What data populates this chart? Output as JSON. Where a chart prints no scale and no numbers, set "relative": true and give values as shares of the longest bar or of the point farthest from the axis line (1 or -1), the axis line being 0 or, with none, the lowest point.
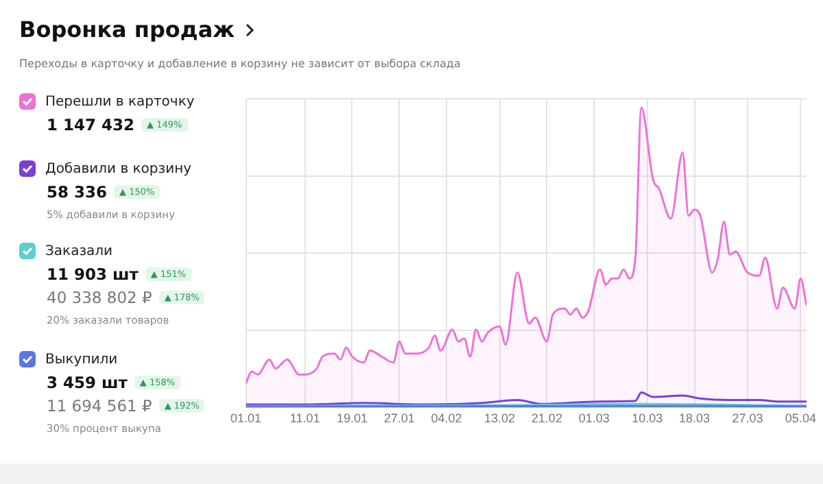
{
  "chart_data": {
    "type": "line",
    "title": "Воронка продаж",
    "subtitle": "Переходы в карточку и добавление в корзину не зависит от выбора склада",
    "relative": true,
    "grid": true,
    "legend": "left",
    "marker": "none",
    "xlim": [
      "--01-01",
      "--04-06"
    ],
    "xticks": [
      {
        "value": "--01-01",
        "label": "01.01"
      },
      {
        "value": "--01-11",
        "label": "11.01"
      },
      {
        "value": "--01-19",
        "label": "19.01"
      },
      {
        "value": "--01-27",
        "label": "27.01"
      },
      {
        "value": "--02-04",
        "label": "04.02"
      },
      {
        "value": "--02-13",
        "label": "13.02"
      },
      {
        "value": "--02-21",
        "label": "21.02"
      },
      {
        "value": "--03-01",
        "label": "01.03"
      },
      {
        "value": "--03-10",
        "label": "10.03"
      },
      {
        "value": "--03-18",
        "label": "18.03"
      },
      {
        "value": "--03-27",
        "label": "27.03"
      },
      {
        "value": "--04-05",
        "label": "05.04"
      }
    ],
    "series": [
      {
        "name": "Перешли в карточку",
        "type": "area",
        "color": "#ee72d6",
        "x": [
          "--01-01",
          "--01-02",
          "--01-03",
          "--01-05",
          "--01-06",
          "--01-08",
          "--01-10",
          "--01-11",
          "--01-13",
          "--01-14",
          "--01-16",
          "--01-17",
          "--01-18",
          "--01-19",
          "--01-21",
          "--01-22",
          "--01-24",
          "--01-26",
          "--01-27",
          "--01-28",
          "--01-30",
          "--02-01",
          "--02-02",
          "--02-03",
          "--02-05",
          "--02-06",
          "--02-07",
          "--02-08",
          "--02-09",
          "--02-10",
          "--02-11",
          "--02-13",
          "--02-14",
          "--02-16",
          "--02-18",
          "--02-19",
          "--02-21",
          "--02-22",
          "--02-24",
          "--02-25",
          "--02-26",
          "--02-27",
          "--02-28",
          "--03-02",
          "--03-03",
          "--03-04",
          "--03-05",
          "--03-06",
          "--03-07",
          "--03-08",
          "--03-09",
          "--03-11",
          "--03-12",
          "--03-14",
          "--03-16",
          "--03-17",
          "--03-18",
          "--03-19",
          "--03-21",
          "--03-22",
          "--03-23",
          "--03-24",
          "--03-25",
          "--03-27",
          "--03-29",
          "--03-30",
          "--04-01",
          "--04-02",
          "--04-04",
          "--04-05",
          "--04-06"
        ],
        "values": [
          0.08,
          0.12,
          0.11,
          0.16,
          0.13,
          0.16,
          0.11,
          0.11,
          0.13,
          0.17,
          0.18,
          0.16,
          0.2,
          0.17,
          0.15,
          0.19,
          0.17,
          0.15,
          0.22,
          0.18,
          0.18,
          0.2,
          0.24,
          0.19,
          0.26,
          0.22,
          0.23,
          0.17,
          0.26,
          0.22,
          0.25,
          0.27,
          0.21,
          0.45,
          0.28,
          0.3,
          0.22,
          0.31,
          0.33,
          0.31,
          0.33,
          0.3,
          0.32,
          0.46,
          0.41,
          0.43,
          0.43,
          0.46,
          0.43,
          0.5,
          1,
          0.76,
          0.73,
          0.63,
          0.85,
          0.64,
          0.66,
          0.64,
          0.45,
          0.5,
          0.62,
          0.51,
          0.52,
          0.45,
          0.44,
          0.5,
          0.33,
          0.4,
          0.33,
          0.43,
          0.34
        ]
      },
      {
        "name": "Добавили в корзину",
        "color": "#7b3fd6",
        "x": [
          "--01-01",
          "--01-11",
          "--01-21",
          "--01-31",
          "--02-10",
          "--02-16",
          "--02-20",
          "--03-02",
          "--03-08",
          "--03-09",
          "--03-11",
          "--03-16",
          "--03-19",
          "--03-24",
          "--03-29",
          "--04-01",
          "--04-06"
        ],
        "values": [
          0.01,
          0.01,
          0.015,
          0.01,
          0.015,
          0.025,
          0.012,
          0.02,
          0.022,
          0.05,
          0.035,
          0.04,
          0.03,
          0.025,
          0.025,
          0.02,
          0.02
        ]
      },
      {
        "name": "Заказали",
        "color": "#5ccfcf",
        "x": [
          "--01-01",
          "--02-16",
          "--03-09",
          "--04-06"
        ],
        "values": [
          0.005,
          0.008,
          0.012,
          0.006
        ]
      },
      {
        "name": "Выкупили",
        "color": "#5a78e0",
        "x": [
          "--01-01",
          "--03-09",
          "--04-06"
        ],
        "values": [
          0.003,
          0.005,
          0.004
        ]
      }
    ],
    "annotations": [
      "1 147 432",
      "▲ 149%",
      "58 336",
      "▲ 150%",
      "5% добавили в корзину",
      "11 903 шт",
      "▲ 151%",
      "40 338 802 ₽",
      "▲ 178%",
      "20% заказали товаров",
      "3 459 шт",
      "▲ 158%",
      "11 694 561 ₽",
      "▲ 192%",
      "30% процент выкупа"
    ]
  }
}
